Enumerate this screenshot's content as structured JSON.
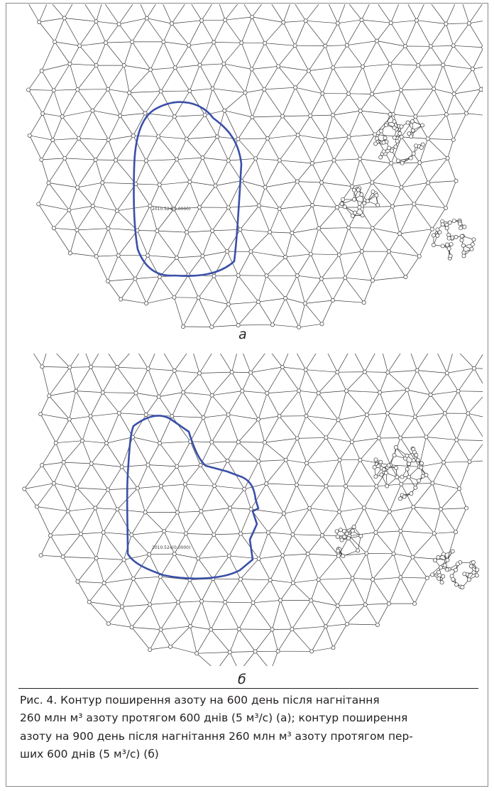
{
  "figure": {
    "panels": [
      {
        "label": "а",
        "contour_annotation": "2010.524(0.0000)"
      },
      {
        "label": "б",
        "contour_annotation": "2010.524(0.0000)"
      }
    ],
    "caption_lines": [
      "Рис. 4. Контур поширення азоту на 600 день після нагнітання",
      "260 млн м³ азоту протягом 600 днів (5 м³/с) (а); контур поширення",
      "азоту на 900 день після нагнітання 260 млн м³ азоту протягом пер-",
      "ших 600 днів (5 м³/с) (б)"
    ],
    "colors": {
      "mesh": "#3a3a3a",
      "node_fill": "#ffffff",
      "contour": "#3a4fa8",
      "text": "#231f20"
    }
  }
}
